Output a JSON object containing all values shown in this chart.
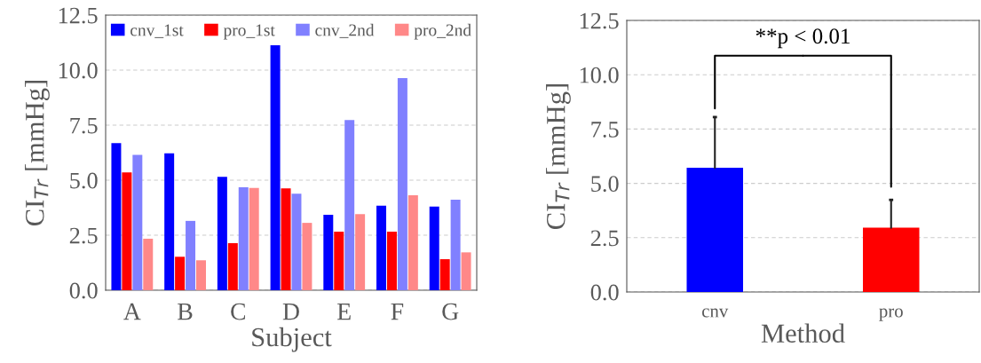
{
  "chart_data": [
    {
      "type": "bar",
      "xlabel": "Subject",
      "ylabel": "CI$_{Tr}$ [mmHg]",
      "categories": [
        "A",
        "B",
        "C",
        "D",
        "E",
        "F",
        "G"
      ],
      "series": [
        {
          "name": "cnv_1st",
          "color": "#0000ff",
          "values": [
            6.68,
            6.22,
            5.15,
            11.13,
            3.43,
            3.84,
            3.8
          ]
        },
        {
          "name": "pro_1st",
          "color": "#ff0000",
          "values": [
            5.35,
            1.52,
            2.14,
            4.63,
            2.66,
            2.66,
            1.41
          ]
        },
        {
          "name": "cnv_2nd",
          "color": "#8080ff",
          "values": [
            6.15,
            3.15,
            4.68,
            4.39,
            7.73,
            9.64,
            4.11
          ]
        },
        {
          "name": "pro_2nd",
          "color": "#ff8888",
          "values": [
            2.34,
            1.36,
            4.65,
            3.06,
            3.46,
            4.31,
            1.72
          ]
        }
      ],
      "ylim": [
        0,
        12.5
      ],
      "yticks": [
        {
          "value": 0,
          "label": "0.0"
        },
        {
          "value": 2.5,
          "label": "2.5"
        },
        {
          "value": 5,
          "label": "5.0"
        },
        {
          "value": 7.5,
          "label": "7.5"
        },
        {
          "value": 10,
          "label": "10.0"
        },
        {
          "value": 12.5,
          "label": "12.5"
        }
      ],
      "grid": "y",
      "legend": "top"
    },
    {
      "type": "bar",
      "xlabel": "Method",
      "ylabel": "CI$_{Tr}$ [mmHg]",
      "categories": [
        "cnv",
        "pro"
      ],
      "values": [
        5.72,
        2.96
      ],
      "colors": [
        "#0000ff",
        "#ff0000"
      ],
      "errors": [
        [
          5.72,
          8.05
        ],
        [
          2.96,
          4.24
        ]
      ],
      "ylim": [
        0,
        12.5
      ],
      "yticks": [
        {
          "value": 0,
          "label": "0.0"
        },
        {
          "value": 2.5,
          "label": "2.5"
        },
        {
          "value": 5,
          "label": "5.0"
        },
        {
          "value": 7.5,
          "label": "7.5"
        },
        {
          "value": 10,
          "label": "10.0"
        },
        {
          "value": 12.5,
          "label": "12.5"
        }
      ],
      "grid": "y",
      "annotations": [
        "**p < 0.01"
      ]
    }
  ]
}
